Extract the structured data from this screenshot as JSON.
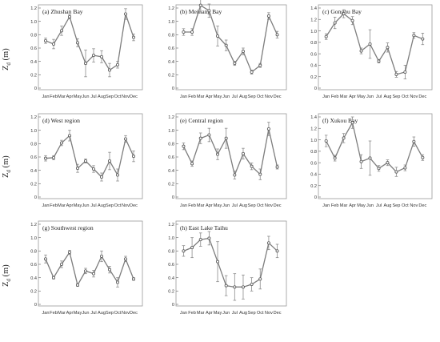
{
  "figure": {
    "y_axis_label_main": "Z",
    "y_axis_label_sub": "d",
    "y_axis_label_unit": " (m)"
  },
  "chart_data": [
    {
      "type": "line",
      "title": "(a) Zhushan Bay",
      "categories": [
        "Jan",
        "Feb",
        "Mar",
        "Apr",
        "May",
        "Jun",
        "Jul",
        "Aug",
        "Sep",
        "Oct",
        "Nov",
        "Dec"
      ],
      "ylim": [
        0,
        1.2
      ],
      "yticks": [
        0,
        0.2,
        0.4,
        0.6,
        0.8,
        1.0,
        1.2
      ],
      "values": [
        0.71,
        0.66,
        0.86,
        1.07,
        0.68,
        0.37,
        0.49,
        0.47,
        0.27,
        0.35,
        1.11,
        0.76
      ],
      "errors": [
        0.04,
        0.07,
        0.07,
        0.03,
        0.06,
        0.2,
        0.1,
        0.09,
        0.1,
        0.05,
        0.08,
        0.05
      ]
    },
    {
      "type": "line",
      "title": "(b) Meiliang Bay",
      "categories": [
        "Jan",
        "Feb",
        "Mar",
        "Apr",
        "May",
        "Jun",
        "Jul",
        "Aug",
        "Sep",
        "Oct",
        "Nov",
        "Dec"
      ],
      "ylim": [
        0,
        1.2
      ],
      "yticks": [
        0,
        0.2,
        0.4,
        0.6,
        0.8,
        1.0,
        1.2
      ],
      "values": [
        0.84,
        0.84,
        1.24,
        1.16,
        0.78,
        0.64,
        0.37,
        0.55,
        0.24,
        0.34,
        1.08,
        0.8
      ],
      "errors": [
        0.05,
        0.05,
        0.1,
        0.1,
        0.15,
        0.08,
        0.03,
        0.05,
        0.03,
        0.03,
        0.05,
        0.05
      ]
    },
    {
      "type": "line",
      "title": "(c) Gonghu Bay",
      "categories": [
        "Jan",
        "Feb",
        "Mar",
        "Apr",
        "May",
        "Jun",
        "Jul",
        "Aug",
        "Sep",
        "Oct",
        "Nov",
        "Dec"
      ],
      "ylim": [
        0,
        1.4
      ],
      "yticks": [
        0,
        0.2,
        0.4,
        0.6,
        0.8,
        1.0,
        1.2,
        1.4
      ],
      "values": [
        0.9,
        1.14,
        1.3,
        1.18,
        0.65,
        0.77,
        0.47,
        0.71,
        0.24,
        0.28,
        0.92,
        0.86
      ],
      "errors": [
        0.05,
        0.1,
        0.07,
        0.07,
        0.05,
        0.25,
        0.03,
        0.08,
        0.05,
        0.12,
        0.05,
        0.1
      ]
    },
    {
      "type": "line",
      "title": "(d) West region",
      "categories": [
        "Jan",
        "Feb",
        "Mar",
        "Apr",
        "May",
        "Jun",
        "Jul",
        "Aug",
        "Sep",
        "Oct",
        "Nov",
        "Dec"
      ],
      "ylim": [
        0,
        1.2
      ],
      "yticks": [
        0,
        0.2,
        0.4,
        0.6,
        0.8,
        1.0,
        1.2
      ],
      "values": [
        0.58,
        0.59,
        0.81,
        0.92,
        0.43,
        0.54,
        0.42,
        0.3,
        0.54,
        0.33,
        0.87,
        0.61
      ],
      "errors": [
        0.04,
        0.03,
        0.04,
        0.08,
        0.06,
        0.03,
        0.05,
        0.06,
        0.13,
        0.09,
        0.05,
        0.08
      ]
    },
    {
      "type": "line",
      "title": "(e) Central region",
      "categories": [
        "Jan",
        "Feb",
        "Mar",
        "Apr",
        "May",
        "Jun",
        "Jul",
        "Aug",
        "Sep",
        "Oct",
        "Nov",
        "Dec"
      ],
      "ylim": [
        0,
        1.2
      ],
      "yticks": [
        0,
        0.2,
        0.4,
        0.6,
        0.8,
        1.0,
        1.2
      ],
      "values": [
        0.76,
        0.5,
        0.88,
        0.93,
        0.64,
        0.88,
        0.33,
        0.65,
        0.46,
        0.34,
        1.02,
        0.45
      ],
      "errors": [
        0.05,
        0.04,
        0.08,
        0.1,
        0.08,
        0.15,
        0.06,
        0.08,
        0.05,
        0.08,
        0.1,
        0.03
      ]
    },
    {
      "type": "line",
      "title": "(f) Xukou Bay",
      "categories": [
        "Jan",
        "Feb",
        "Mar",
        "Apr",
        "May",
        "Jun",
        "Jul",
        "Aug",
        "Sep",
        "Oct",
        "Nov",
        "Dec"
      ],
      "ylim": [
        0,
        1.4
      ],
      "yticks": [
        0,
        0.2,
        0.4,
        0.6,
        0.8,
        1.0,
        1.2,
        1.4
      ],
      "values": [
        0.98,
        0.68,
        1.03,
        1.3,
        0.62,
        0.68,
        0.5,
        0.6,
        0.44,
        0.51,
        0.97,
        0.69
      ],
      "errors": [
        0.1,
        0.05,
        0.08,
        0.1,
        0.12,
        0.3,
        0.05,
        0.05,
        0.08,
        0.05,
        0.08,
        0.05
      ]
    },
    {
      "type": "line",
      "title": "(g) Southwest region",
      "categories": [
        "Jan",
        "Feb",
        "Mar",
        "Apr",
        "May",
        "Jun",
        "Jul",
        "Aug",
        "Sep",
        "Oct",
        "Nov",
        "Dec"
      ],
      "ylim": [
        0,
        1.2
      ],
      "yticks": [
        0,
        0.2,
        0.4,
        0.6,
        0.8,
        1.0,
        1.2
      ],
      "values": [
        0.68,
        0.4,
        0.6,
        0.78,
        0.29,
        0.5,
        0.46,
        0.72,
        0.52,
        0.33,
        0.68,
        0.38
      ],
      "errors": [
        0.06,
        0.02,
        0.05,
        0.03,
        0.02,
        0.04,
        0.05,
        0.08,
        0.05,
        0.07,
        0.04,
        0.02
      ]
    },
    {
      "type": "line",
      "title": "(h) East Lake Taihu",
      "categories": [
        "Jan",
        "Feb",
        "Mar",
        "Apr",
        "May",
        "Jun",
        "Jul",
        "Aug",
        "Sep",
        "Oct",
        "Nov",
        "Dec"
      ],
      "ylim": [
        0,
        1.2
      ],
      "yticks": [
        0,
        0.2,
        0.4,
        0.6,
        0.8,
        1.0,
        1.2
      ],
      "values": [
        0.8,
        0.85,
        0.97,
        0.99,
        0.64,
        0.28,
        0.26,
        0.26,
        0.3,
        0.38,
        0.92,
        0.8
      ],
      "errors": [
        0.08,
        0.15,
        0.1,
        0.1,
        0.3,
        0.15,
        0.2,
        0.18,
        0.1,
        0.15,
        0.1,
        0.1
      ]
    }
  ]
}
